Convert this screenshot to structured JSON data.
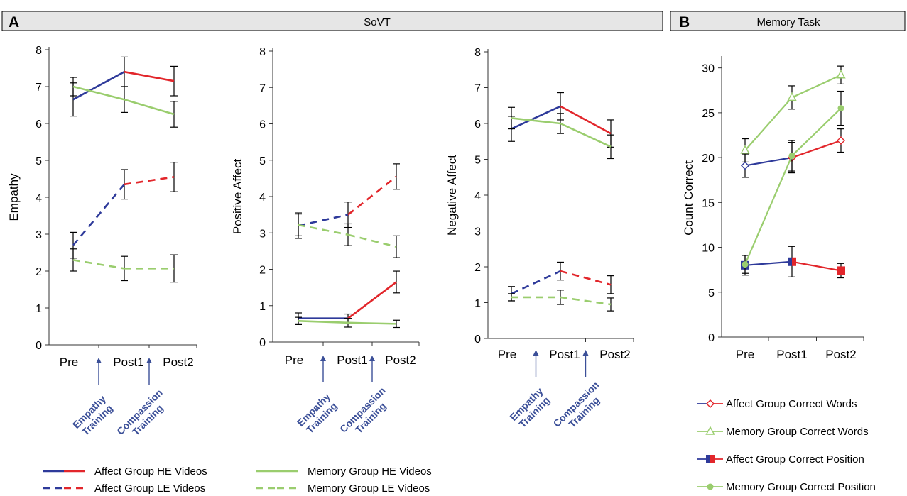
{
  "panels": {
    "a": {
      "letter": "A",
      "title": "SoVT"
    },
    "b": {
      "letter": "B",
      "title": "Memory Task"
    }
  },
  "colors": {
    "blue": "#2e3a9a",
    "red": "#e2262b",
    "green": "#9acd6e",
    "header_bg": "#e6e6e6",
    "train_text": "#3b4f98"
  },
  "training_labels": {
    "empathy": [
      "Empathy",
      "Training"
    ],
    "compassion": [
      "Compassion",
      "Training"
    ]
  },
  "legend_a": [
    {
      "label": "Affect Group HE Videos",
      "style": "solid",
      "colors": [
        "blue",
        "red"
      ]
    },
    {
      "label": "Memory Group HE Videos",
      "style": "solid",
      "colors": [
        "green",
        "green"
      ]
    },
    {
      "label": "Affect Group LE Videos",
      "style": "dashed",
      "colors": [
        "blue",
        "red"
      ]
    },
    {
      "label": "Memory Group LE Videos",
      "style": "dashed",
      "colors": [
        "green",
        "green"
      ]
    }
  ],
  "legend_b": [
    {
      "label": "Affect Group Correct Words",
      "marker": "diamond"
    },
    {
      "label": "Memory Group Correct Words",
      "marker": "triangle"
    },
    {
      "label": "Affect Group Correct Position",
      "marker": "square"
    },
    {
      "label": "Memory Group Correct Position",
      "marker": "circle"
    }
  ],
  "chart_data": [
    {
      "type": "line",
      "ylabel": "Empathy",
      "ylim": [
        0,
        8
      ],
      "yticks": [
        0,
        1,
        2,
        3,
        4,
        5,
        6,
        7,
        8
      ],
      "categories": [
        "Pre",
        "Post1",
        "Post2"
      ],
      "series": [
        {
          "name": "Affect Group HE Videos",
          "values": [
            6.65,
            7.4,
            7.15
          ],
          "errors": [
            0.45,
            0.4,
            0.4
          ]
        },
        {
          "name": "Memory Group HE Videos",
          "values": [
            7.0,
            6.65,
            6.25
          ],
          "errors": [
            0.25,
            0.35,
            0.35
          ]
        },
        {
          "name": "Affect Group LE Videos",
          "values": [
            2.7,
            4.35,
            4.55
          ],
          "errors": [
            0.35,
            0.4,
            0.4
          ]
        },
        {
          "name": "Memory Group LE Videos",
          "values": [
            2.3,
            2.07,
            2.07
          ],
          "errors": [
            0.3,
            0.33,
            0.37
          ]
        }
      ]
    },
    {
      "type": "line",
      "ylabel": "Positive Affect",
      "ylim": [
        0,
        8
      ],
      "yticks": [
        0,
        1,
        2,
        3,
        4,
        5,
        6,
        7,
        8
      ],
      "categories": [
        "Pre",
        "Post1",
        "Post2"
      ],
      "series": [
        {
          "name": "Affect Group HE Videos",
          "values": [
            0.65,
            0.65,
            1.65
          ],
          "errors": [
            0.15,
            0.12,
            0.3
          ]
        },
        {
          "name": "Memory Group HE Videos",
          "values": [
            0.58,
            0.53,
            0.5
          ],
          "errors": [
            0.1,
            0.12,
            0.1
          ]
        },
        {
          "name": "Affect Group LE Videos",
          "values": [
            3.2,
            3.5,
            4.55
          ],
          "errors": [
            0.35,
            0.35,
            0.35
          ]
        },
        {
          "name": "Memory Group LE Videos",
          "values": [
            3.22,
            2.95,
            2.62
          ],
          "errors": [
            0.3,
            0.3,
            0.3
          ]
        }
      ]
    },
    {
      "type": "line",
      "ylabel": "Negative Affect",
      "ylim": [
        0,
        8
      ],
      "yticks": [
        0,
        1,
        2,
        3,
        4,
        5,
        6,
        7,
        8
      ],
      "categories": [
        "Pre",
        "Post1",
        "Post2"
      ],
      "series": [
        {
          "name": "Affect Group HE Videos",
          "values": [
            5.85,
            6.48,
            5.72
          ],
          "errors": [
            0.35,
            0.38,
            0.38
          ]
        },
        {
          "name": "Memory Group HE Videos",
          "values": [
            6.15,
            6.0,
            5.35
          ],
          "errors": [
            0.3,
            0.28,
            0.33
          ]
        },
        {
          "name": "Affect Group LE Videos",
          "values": [
            1.25,
            1.88,
            1.5
          ],
          "errors": [
            0.2,
            0.25,
            0.25
          ]
        },
        {
          "name": "Memory Group LE Videos",
          "values": [
            1.15,
            1.15,
            0.95
          ],
          "errors": [
            0.1,
            0.2,
            0.18
          ]
        }
      ]
    },
    {
      "type": "line",
      "ylabel": "Count Correct",
      "ylim": [
        0,
        31
      ],
      "yticks": [
        0,
        5,
        10,
        15,
        20,
        25,
        30
      ],
      "categories": [
        "Pre",
        "Post1",
        "Post2"
      ],
      "series": [
        {
          "name": "Affect Group Correct Words",
          "values": [
            19.1,
            20.0,
            21.9
          ],
          "errors": [
            1.3,
            1.7,
            1.3
          ]
        },
        {
          "name": "Memory Group Correct Words",
          "values": [
            20.8,
            26.7,
            29.2
          ],
          "errors": [
            1.3,
            1.3,
            1.0
          ]
        },
        {
          "name": "Affect Group Correct Position",
          "values": [
            8.0,
            8.4,
            7.4
          ],
          "errors": [
            1.1,
            1.7,
            0.8
          ]
        },
        {
          "name": "Memory Group Correct Position",
          "values": [
            8.1,
            20.2,
            25.5
          ],
          "errors": [
            1.0,
            1.7,
            1.9
          ]
        }
      ]
    }
  ]
}
